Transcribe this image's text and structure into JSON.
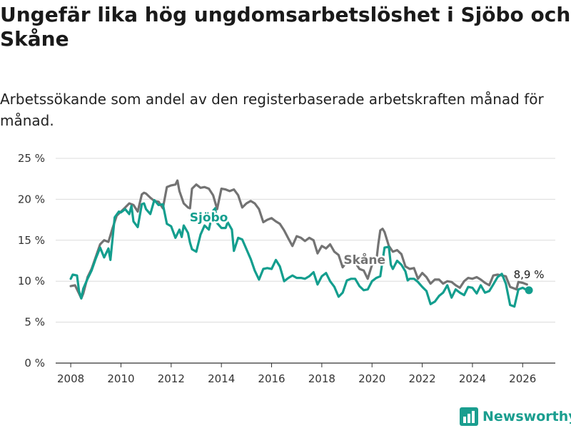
{
  "header": {
    "title": "Ungefär lika hög ungdomsarbetslöshet i Sjöbo och Skåne",
    "subtitle": "Arbetssökande som andel av den registerbaserade arbetskraften månad för månad."
  },
  "brand": {
    "name": "Newsworthy",
    "icon": "bar-chart-logo-icon"
  },
  "colors": {
    "sjobo": "#139e8e",
    "skane": "#737373",
    "grid": "#dcdcdc",
    "axis": "#333333"
  },
  "chart_data": {
    "type": "line",
    "title": "Ungefär lika hög ungdomsarbetslöshet i Sjöbo och Skåne",
    "xlabel": "",
    "ylabel": "",
    "xlim": [
      2007.4,
      2027.3
    ],
    "ylim": [
      0,
      25
    ],
    "x_ticks": [
      2008,
      2010,
      2012,
      2014,
      2016,
      2018,
      2020,
      2022,
      2024,
      2026
    ],
    "x_tick_labels": [
      "2008",
      "2010",
      "2012",
      "2014",
      "2016",
      "2018",
      "2020",
      "2022",
      "2024",
      "2026"
    ],
    "y_ticks": [
      0,
      5,
      10,
      15,
      20,
      25
    ],
    "y_tick_labels": [
      "0 %",
      "5 %",
      "10 %",
      "15 %",
      "20 %",
      "25 %"
    ],
    "grid": true,
    "series": [
      {
        "name": "Skåne",
        "label": "Skåne",
        "label_at": [
          2019.7,
          12.1
        ],
        "points": [
          [
            2008.0,
            9.4
          ],
          [
            2008.17,
            9.5
          ],
          [
            2008.33,
            8.5
          ],
          [
            2008.42,
            7.9
          ],
          [
            2008.5,
            8.5
          ],
          [
            2008.67,
            10.5
          ],
          [
            2008.83,
            11.5
          ],
          [
            2009.0,
            13.0
          ],
          [
            2009.17,
            14.5
          ],
          [
            2009.33,
            15.0
          ],
          [
            2009.5,
            14.8
          ],
          [
            2009.67,
            16.5
          ],
          [
            2009.83,
            18.0
          ],
          [
            2010.0,
            18.5
          ],
          [
            2010.17,
            19.0
          ],
          [
            2010.33,
            19.5
          ],
          [
            2010.5,
            19.3
          ],
          [
            2010.67,
            18.5
          ],
          [
            2010.83,
            20.6
          ],
          [
            2010.92,
            20.8
          ],
          [
            2011.0,
            20.7
          ],
          [
            2011.17,
            20.2
          ],
          [
            2011.33,
            19.8
          ],
          [
            2011.5,
            19.7
          ],
          [
            2011.67,
            18.9
          ],
          [
            2011.83,
            21.5
          ],
          [
            2012.0,
            21.7
          ],
          [
            2012.17,
            21.8
          ],
          [
            2012.25,
            22.3
          ],
          [
            2012.33,
            21.0
          ],
          [
            2012.5,
            19.5
          ],
          [
            2012.67,
            19.0
          ],
          [
            2012.75,
            18.9
          ],
          [
            2012.83,
            21.3
          ],
          [
            2013.0,
            21.8
          ],
          [
            2013.17,
            21.4
          ],
          [
            2013.33,
            21.5
          ],
          [
            2013.5,
            21.3
          ],
          [
            2013.67,
            20.5
          ],
          [
            2013.83,
            18.8
          ],
          [
            2014.0,
            21.3
          ],
          [
            2014.17,
            21.2
          ],
          [
            2014.33,
            21.0
          ],
          [
            2014.5,
            21.2
          ],
          [
            2014.67,
            20.5
          ],
          [
            2014.83,
            19.0
          ],
          [
            2015.0,
            19.5
          ],
          [
            2015.17,
            19.8
          ],
          [
            2015.33,
            19.5
          ],
          [
            2015.5,
            18.8
          ],
          [
            2015.67,
            17.2
          ],
          [
            2015.83,
            17.5
          ],
          [
            2016.0,
            17.7
          ],
          [
            2016.17,
            17.3
          ],
          [
            2016.33,
            17.0
          ],
          [
            2016.5,
            16.2
          ],
          [
            2016.67,
            15.2
          ],
          [
            2016.83,
            14.3
          ],
          [
            2017.0,
            15.5
          ],
          [
            2017.17,
            15.3
          ],
          [
            2017.33,
            14.9
          ],
          [
            2017.5,
            15.3
          ],
          [
            2017.67,
            15.0
          ],
          [
            2017.83,
            13.4
          ],
          [
            2018.0,
            14.3
          ],
          [
            2018.17,
            14.0
          ],
          [
            2018.33,
            14.5
          ],
          [
            2018.5,
            13.6
          ],
          [
            2018.67,
            13.2
          ],
          [
            2018.83,
            11.7
          ],
          [
            2019.0,
            12.4
          ],
          [
            2019.17,
            12.5
          ],
          [
            2019.33,
            12.3
          ],
          [
            2019.5,
            11.5
          ],
          [
            2019.67,
            11.3
          ],
          [
            2019.83,
            10.3
          ],
          [
            2020.0,
            12.0
          ],
          [
            2020.17,
            12.4
          ],
          [
            2020.25,
            14.5
          ],
          [
            2020.33,
            16.2
          ],
          [
            2020.42,
            16.4
          ],
          [
            2020.5,
            16.0
          ],
          [
            2020.67,
            14.3
          ],
          [
            2020.83,
            13.6
          ],
          [
            2021.0,
            13.8
          ],
          [
            2021.17,
            13.3
          ],
          [
            2021.33,
            11.8
          ],
          [
            2021.5,
            11.5
          ],
          [
            2021.67,
            11.6
          ],
          [
            2021.83,
            10.3
          ],
          [
            2022.0,
            11.0
          ],
          [
            2022.17,
            10.5
          ],
          [
            2022.33,
            9.7
          ],
          [
            2022.5,
            10.2
          ],
          [
            2022.67,
            10.2
          ],
          [
            2022.83,
            9.7
          ],
          [
            2023.0,
            10.0
          ],
          [
            2023.17,
            9.9
          ],
          [
            2023.33,
            9.5
          ],
          [
            2023.5,
            9.2
          ],
          [
            2023.67,
            10.0
          ],
          [
            2023.83,
            10.4
          ],
          [
            2024.0,
            10.3
          ],
          [
            2024.17,
            10.5
          ],
          [
            2024.33,
            10.2
          ],
          [
            2024.5,
            9.8
          ],
          [
            2024.67,
            9.5
          ],
          [
            2024.83,
            10.7
          ],
          [
            2025.0,
            10.8
          ],
          [
            2025.17,
            10.7
          ],
          [
            2025.33,
            10.6
          ],
          [
            2025.5,
            9.3
          ],
          [
            2025.67,
            9.1
          ],
          [
            2025.75,
            9.0
          ],
          [
            2025.83,
            9.9
          ],
          [
            2026.0,
            9.8
          ],
          [
            2026.17,
            9.6
          ]
        ]
      },
      {
        "name": "Sjöbo",
        "label": "Sjöbo",
        "label_at": [
          2013.5,
          17.3
        ],
        "points": [
          [
            2008.0,
            10.3
          ],
          [
            2008.08,
            10.8
          ],
          [
            2008.25,
            10.7
          ],
          [
            2008.33,
            8.8
          ],
          [
            2008.42,
            7.9
          ],
          [
            2008.5,
            9.1
          ],
          [
            2008.67,
            10.3
          ],
          [
            2008.83,
            11.3
          ],
          [
            2009.0,
            12.8
          ],
          [
            2009.17,
            14.1
          ],
          [
            2009.33,
            12.9
          ],
          [
            2009.5,
            14.0
          ],
          [
            2009.58,
            12.6
          ],
          [
            2009.75,
            17.8
          ],
          [
            2009.92,
            18.5
          ],
          [
            2010.0,
            18.4
          ],
          [
            2010.17,
            18.8
          ],
          [
            2010.33,
            18.2
          ],
          [
            2010.42,
            19.2
          ],
          [
            2010.5,
            17.3
          ],
          [
            2010.67,
            16.6
          ],
          [
            2010.83,
            19.4
          ],
          [
            2010.92,
            19.5
          ],
          [
            2011.0,
            18.8
          ],
          [
            2011.17,
            18.2
          ],
          [
            2011.33,
            19.9
          ],
          [
            2011.5,
            19.3
          ],
          [
            2011.67,
            19.4
          ],
          [
            2011.83,
            17.0
          ],
          [
            2012.0,
            16.7
          ],
          [
            2012.17,
            15.3
          ],
          [
            2012.33,
            16.3
          ],
          [
            2012.42,
            15.4
          ],
          [
            2012.5,
            16.8
          ],
          [
            2012.67,
            15.9
          ],
          [
            2012.75,
            14.7
          ],
          [
            2012.83,
            13.9
          ],
          [
            2013.0,
            13.6
          ],
          [
            2013.17,
            15.7
          ],
          [
            2013.33,
            16.8
          ],
          [
            2013.5,
            16.3
          ],
          [
            2013.67,
            18.6
          ],
          [
            2013.75,
            18.9
          ],
          [
            2013.83,
            17.1
          ],
          [
            2014.0,
            16.5
          ],
          [
            2014.17,
            16.5
          ],
          [
            2014.25,
            17.2
          ],
          [
            2014.42,
            16.3
          ],
          [
            2014.5,
            13.7
          ],
          [
            2014.67,
            15.3
          ],
          [
            2014.83,
            15.1
          ],
          [
            2015.0,
            13.9
          ],
          [
            2015.17,
            12.7
          ],
          [
            2015.33,
            11.3
          ],
          [
            2015.5,
            10.2
          ],
          [
            2015.67,
            11.5
          ],
          [
            2015.83,
            11.6
          ],
          [
            2016.0,
            11.5
          ],
          [
            2016.17,
            12.6
          ],
          [
            2016.33,
            11.8
          ],
          [
            2016.5,
            10.0
          ],
          [
            2016.67,
            10.4
          ],
          [
            2016.83,
            10.7
          ],
          [
            2017.0,
            10.4
          ],
          [
            2017.17,
            10.4
          ],
          [
            2017.33,
            10.3
          ],
          [
            2017.5,
            10.6
          ],
          [
            2017.67,
            11.1
          ],
          [
            2017.83,
            9.6
          ],
          [
            2018.0,
            10.6
          ],
          [
            2018.17,
            11.0
          ],
          [
            2018.33,
            10.0
          ],
          [
            2018.5,
            9.3
          ],
          [
            2018.67,
            8.1
          ],
          [
            2018.83,
            8.6
          ],
          [
            2019.0,
            10.1
          ],
          [
            2019.17,
            10.3
          ],
          [
            2019.33,
            10.3
          ],
          [
            2019.5,
            9.4
          ],
          [
            2019.67,
            8.9
          ],
          [
            2019.83,
            9.0
          ],
          [
            2020.0,
            10.0
          ],
          [
            2020.17,
            10.4
          ],
          [
            2020.33,
            10.6
          ],
          [
            2020.42,
            12.5
          ],
          [
            2020.5,
            14.1
          ],
          [
            2020.67,
            14.2
          ],
          [
            2020.75,
            12.0
          ],
          [
            2020.83,
            11.5
          ],
          [
            2021.0,
            12.5
          ],
          [
            2021.17,
            12.0
          ],
          [
            2021.33,
            11.2
          ],
          [
            2021.42,
            10.1
          ],
          [
            2021.5,
            10.3
          ],
          [
            2021.67,
            10.3
          ],
          [
            2021.83,
            9.9
          ],
          [
            2022.0,
            9.3
          ],
          [
            2022.17,
            8.8
          ],
          [
            2022.33,
            7.2
          ],
          [
            2022.5,
            7.5
          ],
          [
            2022.67,
            8.2
          ],
          [
            2022.83,
            8.6
          ],
          [
            2023.0,
            9.5
          ],
          [
            2023.17,
            8.0
          ],
          [
            2023.33,
            9.0
          ],
          [
            2023.5,
            8.6
          ],
          [
            2023.67,
            8.3
          ],
          [
            2023.83,
            9.3
          ],
          [
            2024.0,
            9.2
          ],
          [
            2024.17,
            8.5
          ],
          [
            2024.33,
            9.5
          ],
          [
            2024.5,
            8.6
          ],
          [
            2024.67,
            8.8
          ],
          [
            2024.83,
            9.6
          ],
          [
            2025.0,
            10.5
          ],
          [
            2025.17,
            10.9
          ],
          [
            2025.33,
            9.7
          ],
          [
            2025.5,
            7.1
          ],
          [
            2025.67,
            6.9
          ],
          [
            2025.83,
            9.0
          ],
          [
            2026.0,
            9.2
          ],
          [
            2026.17,
            8.9
          ]
        ]
      }
    ],
    "annotations": [
      {
        "series": "Sjöbo",
        "x": 2026.25,
        "y": 8.9,
        "text": "8,9 %"
      }
    ]
  }
}
